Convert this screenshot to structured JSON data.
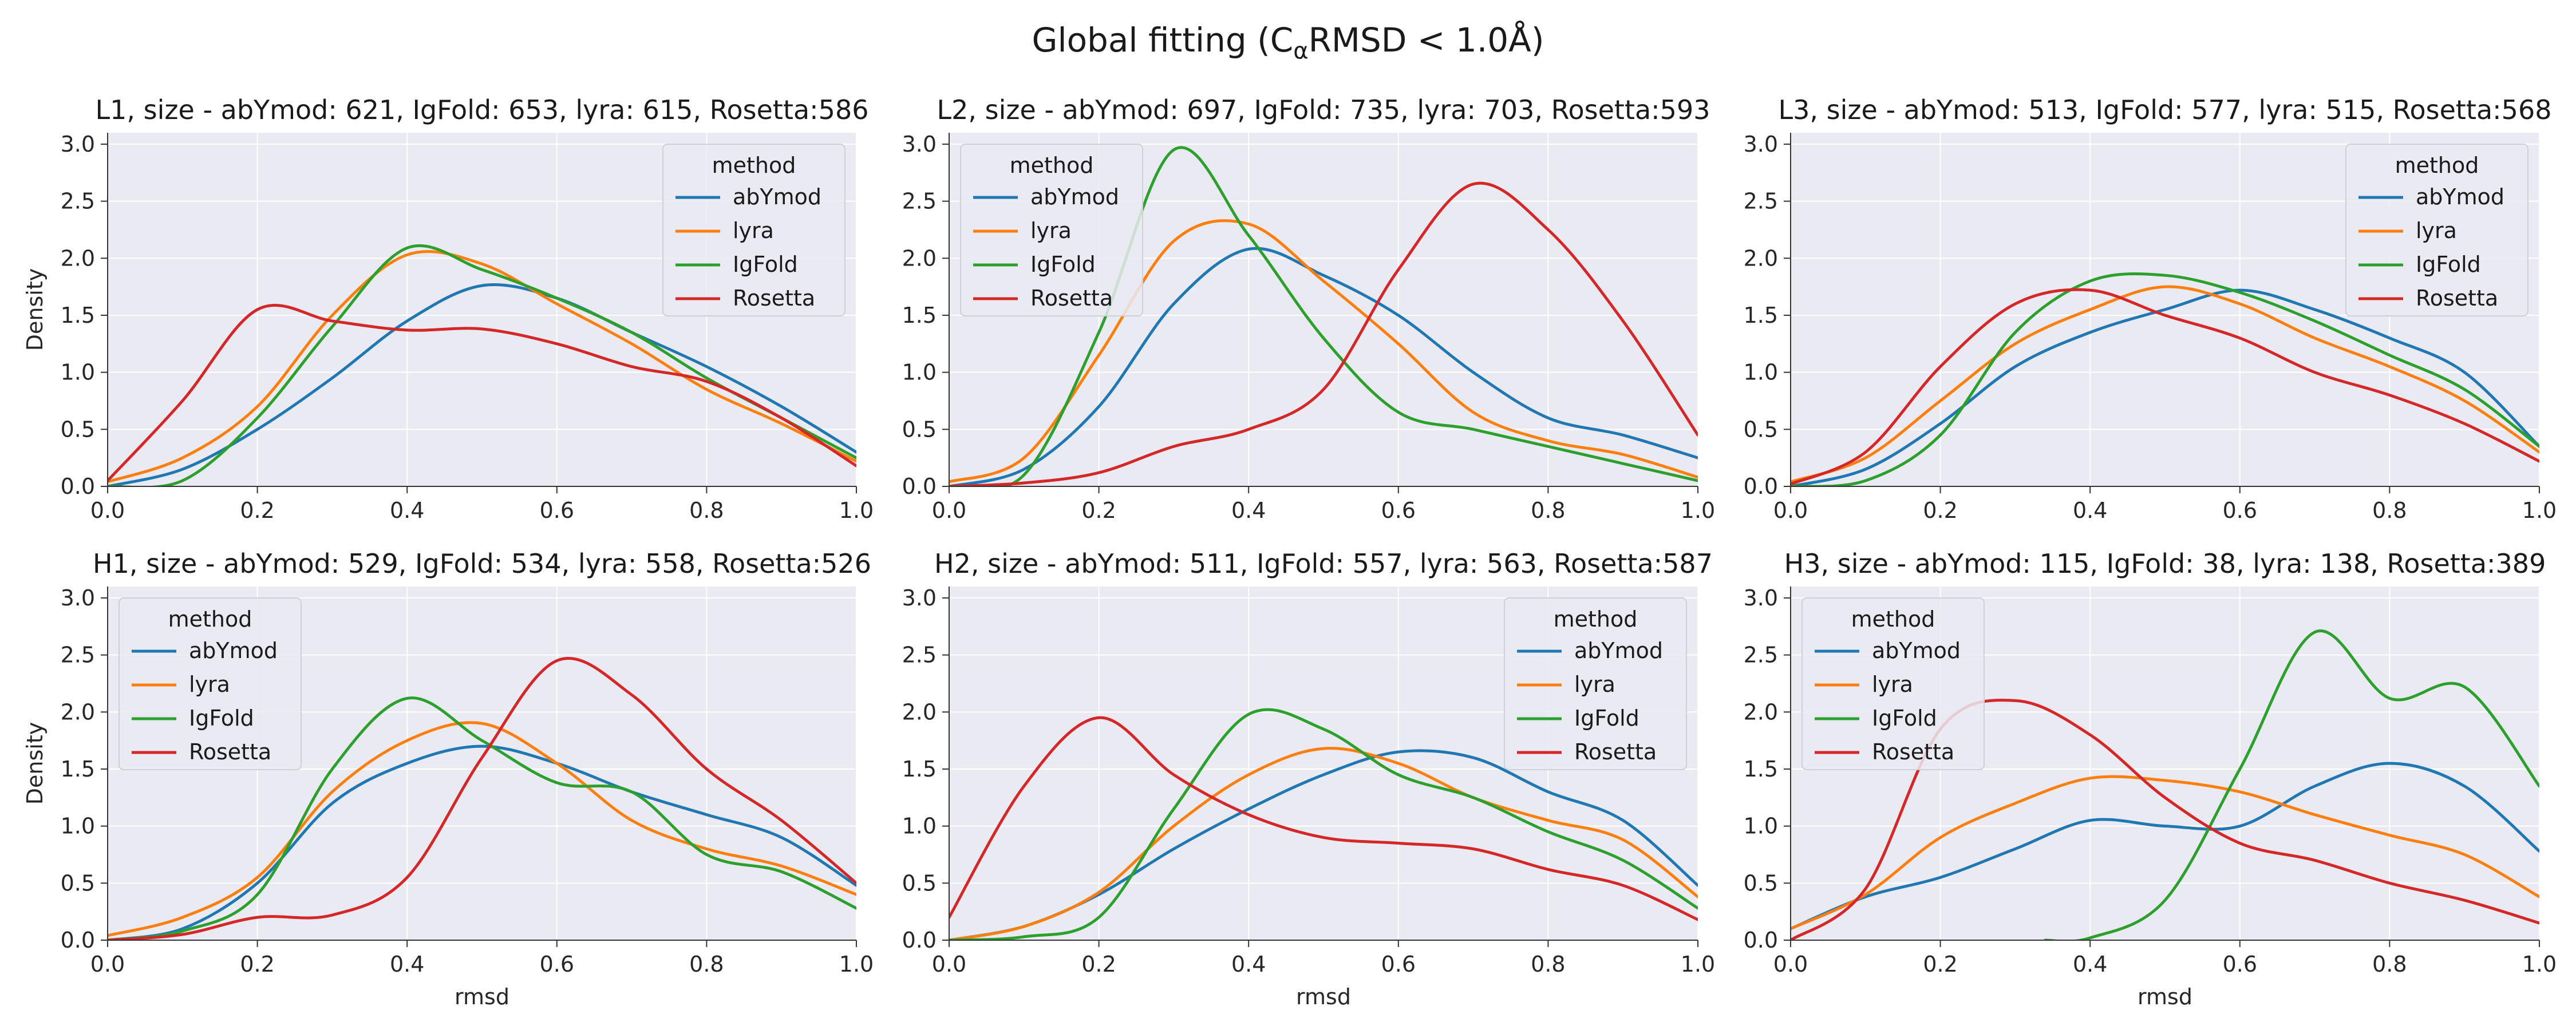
{
  "figure": {
    "suptitle_prefix": "Global fitting (C",
    "suptitle_sub": "α",
    "suptitle_suffix": "RMSD  < 1.0Å)"
  },
  "chart_data": [
    {
      "type": "line",
      "title": "L1, size - abYmod: 621, IgFold: 653, lyra: 615, Rosetta:586",
      "xlabel": "",
      "ylabel": "Density",
      "xlim": [
        0,
        1
      ],
      "ylim": [
        0,
        3.1
      ],
      "xticks": [
        "0.0",
        "0.2",
        "0.4",
        "0.6",
        "0.8",
        "1.0"
      ],
      "yticks": [
        "0.0",
        "0.5",
        "1.0",
        "1.5",
        "2.0",
        "2.5",
        "3.0"
      ],
      "grid": true,
      "legend": {
        "title": "method",
        "placement": "top-right"
      },
      "x": [
        0,
        0.1,
        0.2,
        0.3,
        0.4,
        0.5,
        0.6,
        0.7,
        0.8,
        0.9,
        1.0
      ],
      "series": [
        {
          "name": "abYmod",
          "color": "#1f77b4",
          "values": [
            0.0,
            0.15,
            0.5,
            0.95,
            1.45,
            1.76,
            1.65,
            1.35,
            1.05,
            0.7,
            0.3
          ]
        },
        {
          "name": "lyra",
          "color": "#ff7f0e",
          "values": [
            0.04,
            0.25,
            0.7,
            1.5,
            2.03,
            1.95,
            1.6,
            1.25,
            0.85,
            0.55,
            0.22
          ]
        },
        {
          "name": "IgFold",
          "color": "#2ca02c",
          "values": [
            0.0,
            0.05,
            0.6,
            1.4,
            2.09,
            1.9,
            1.65,
            1.35,
            0.95,
            0.6,
            0.25
          ]
        },
        {
          "name": "Rosetta",
          "color": "#d62728",
          "values": [
            0.05,
            0.75,
            1.55,
            1.45,
            1.37,
            1.38,
            1.25,
            1.05,
            0.92,
            0.6,
            0.18
          ]
        }
      ]
    },
    {
      "type": "line",
      "title": "L2, size - abYmod: 697, IgFold: 735, lyra: 703, Rosetta:593",
      "xlabel": "",
      "ylabel": "",
      "xlim": [
        0,
        1
      ],
      "ylim": [
        0,
        3.1
      ],
      "xticks": [
        "0.0",
        "0.2",
        "0.4",
        "0.6",
        "0.8",
        "1.0"
      ],
      "yticks": [
        "0.0",
        "0.5",
        "1.0",
        "1.5",
        "2.0",
        "2.5",
        "3.0"
      ],
      "grid": true,
      "legend": {
        "title": "method",
        "placement": "top-left"
      },
      "x": [
        0,
        0.1,
        0.2,
        0.3,
        0.4,
        0.5,
        0.6,
        0.7,
        0.8,
        0.9,
        1.0
      ],
      "series": [
        {
          "name": "abYmod",
          "color": "#1f77b4",
          "values": [
            0.0,
            0.15,
            0.7,
            1.6,
            2.08,
            1.85,
            1.5,
            1.0,
            0.6,
            0.45,
            0.25
          ]
        },
        {
          "name": "lyra",
          "color": "#ff7f0e",
          "values": [
            0.04,
            0.25,
            1.15,
            2.15,
            2.3,
            1.8,
            1.25,
            0.65,
            0.4,
            0.28,
            0.08
          ]
        },
        {
          "name": "IgFold",
          "color": "#2ca02c",
          "values": [
            0.0,
            0.1,
            1.35,
            2.95,
            2.2,
            1.3,
            0.65,
            0.5,
            0.35,
            0.2,
            0.05
          ]
        },
        {
          "name": "Rosetta",
          "color": "#d62728",
          "values": [
            0.0,
            0.03,
            0.12,
            0.35,
            0.5,
            0.85,
            1.9,
            2.65,
            2.25,
            1.45,
            0.45
          ]
        }
      ]
    },
    {
      "type": "line",
      "title": "L3, size - abYmod: 513, IgFold: 577, lyra: 515, Rosetta:568",
      "xlabel": "",
      "ylabel": "",
      "xlim": [
        0,
        1
      ],
      "ylim": [
        0,
        3.1
      ],
      "xticks": [
        "0.0",
        "0.2",
        "0.4",
        "0.6",
        "0.8",
        "1.0"
      ],
      "yticks": [
        "0.0",
        "0.5",
        "1.0",
        "1.5",
        "2.0",
        "2.5",
        "3.0"
      ],
      "grid": true,
      "legend": {
        "title": "method",
        "placement": "top-right"
      },
      "x": [
        0,
        0.1,
        0.2,
        0.3,
        0.4,
        0.5,
        0.6,
        0.7,
        0.8,
        0.9,
        1.0
      ],
      "series": [
        {
          "name": "abYmod",
          "color": "#1f77b4",
          "values": [
            0.0,
            0.15,
            0.55,
            1.05,
            1.35,
            1.55,
            1.72,
            1.55,
            1.3,
            1.0,
            0.35
          ]
        },
        {
          "name": "lyra",
          "color": "#ff7f0e",
          "values": [
            0.04,
            0.25,
            0.75,
            1.25,
            1.55,
            1.75,
            1.6,
            1.3,
            1.05,
            0.75,
            0.3
          ]
        },
        {
          "name": "IgFold",
          "color": "#2ca02c",
          "values": [
            0.0,
            0.05,
            0.45,
            1.35,
            1.8,
            1.85,
            1.7,
            1.45,
            1.15,
            0.85,
            0.35
          ]
        },
        {
          "name": "Rosetta",
          "color": "#d62728",
          "values": [
            0.02,
            0.3,
            1.05,
            1.6,
            1.72,
            1.5,
            1.3,
            1.0,
            0.8,
            0.55,
            0.22
          ]
        }
      ]
    },
    {
      "type": "line",
      "title": "H1, size - abYmod: 529, IgFold: 534, lyra: 558, Rosetta:526",
      "xlabel": "rmsd",
      "ylabel": "Density",
      "xlim": [
        0,
        1
      ],
      "ylim": [
        0,
        3.1
      ],
      "xticks": [
        "0.0",
        "0.2",
        "0.4",
        "0.6",
        "0.8",
        "1.0"
      ],
      "yticks": [
        "0.0",
        "0.5",
        "1.0",
        "1.5",
        "2.0",
        "2.5",
        "3.0"
      ],
      "grid": true,
      "legend": {
        "title": "method",
        "placement": "top-left"
      },
      "x": [
        0,
        0.1,
        0.2,
        0.3,
        0.4,
        0.5,
        0.6,
        0.7,
        0.8,
        0.9,
        1.0
      ],
      "series": [
        {
          "name": "abYmod",
          "color": "#1f77b4",
          "values": [
            0.0,
            0.1,
            0.5,
            1.2,
            1.55,
            1.7,
            1.55,
            1.3,
            1.1,
            0.9,
            0.48
          ]
        },
        {
          "name": "lyra",
          "color": "#ff7f0e",
          "values": [
            0.04,
            0.2,
            0.55,
            1.3,
            1.75,
            1.9,
            1.55,
            1.05,
            0.8,
            0.65,
            0.4
          ]
        },
        {
          "name": "IgFold",
          "color": "#2ca02c",
          "values": [
            0.0,
            0.08,
            0.4,
            1.5,
            2.12,
            1.75,
            1.38,
            1.3,
            0.75,
            0.6,
            0.28
          ]
        },
        {
          "name": "Rosetta",
          "color": "#d62728",
          "values": [
            0.0,
            0.05,
            0.2,
            0.22,
            0.55,
            1.6,
            2.45,
            2.15,
            1.5,
            1.05,
            0.5
          ]
        }
      ]
    },
    {
      "type": "line",
      "title": "H2, size - abYmod: 511, IgFold: 557, lyra: 563, Rosetta:587",
      "xlabel": "rmsd",
      "ylabel": "",
      "xlim": [
        0,
        1
      ],
      "ylim": [
        0,
        3.1
      ],
      "xticks": [
        "0.0",
        "0.2",
        "0.4",
        "0.6",
        "0.8",
        "1.0"
      ],
      "yticks": [
        "0.0",
        "0.5",
        "1.0",
        "1.5",
        "2.0",
        "2.5",
        "3.0"
      ],
      "grid": true,
      "legend": {
        "title": "method",
        "placement": "top-right"
      },
      "x": [
        0,
        0.1,
        0.2,
        0.3,
        0.4,
        0.5,
        0.6,
        0.7,
        0.8,
        0.9,
        1.0
      ],
      "series": [
        {
          "name": "abYmod",
          "color": "#1f77b4",
          "values": [
            0.0,
            0.12,
            0.4,
            0.8,
            1.15,
            1.45,
            1.65,
            1.6,
            1.3,
            1.05,
            0.48
          ]
        },
        {
          "name": "lyra",
          "color": "#ff7f0e",
          "values": [
            0.0,
            0.12,
            0.42,
            1.0,
            1.45,
            1.68,
            1.55,
            1.25,
            1.05,
            0.88,
            0.38
          ]
        },
        {
          "name": "IgFold",
          "color": "#2ca02c",
          "values": [
            0.0,
            0.03,
            0.2,
            1.15,
            1.98,
            1.85,
            1.45,
            1.25,
            0.95,
            0.7,
            0.28
          ]
        },
        {
          "name": "Rosetta",
          "color": "#d62728",
          "values": [
            0.2,
            1.35,
            1.95,
            1.45,
            1.1,
            0.9,
            0.85,
            0.8,
            0.62,
            0.48,
            0.18
          ]
        }
      ]
    },
    {
      "type": "line",
      "title": "H3, size - abYmod: 115, IgFold: 38, lyra: 138, Rosetta:389",
      "xlabel": "rmsd",
      "ylabel": "",
      "xlim": [
        0,
        1
      ],
      "ylim": [
        0,
        3.1
      ],
      "xticks": [
        "0.0",
        "0.2",
        "0.4",
        "0.6",
        "0.8",
        "1.0"
      ],
      "yticks": [
        "0.0",
        "0.5",
        "1.0",
        "1.5",
        "2.0",
        "2.5",
        "3.0"
      ],
      "grid": true,
      "legend": {
        "title": "method",
        "placement": "top-left"
      },
      "x": [
        0,
        0.1,
        0.2,
        0.3,
        0.4,
        0.5,
        0.6,
        0.7,
        0.8,
        0.9,
        1.0
      ],
      "series": [
        {
          "name": "abYmod",
          "color": "#1f77b4",
          "values": [
            0.1,
            0.38,
            0.55,
            0.8,
            1.05,
            1.0,
            1.0,
            1.35,
            1.55,
            1.35,
            0.78
          ]
        },
        {
          "name": "lyra",
          "color": "#ff7f0e",
          "values": [
            0.1,
            0.4,
            0.9,
            1.2,
            1.42,
            1.4,
            1.3,
            1.1,
            0.92,
            0.75,
            0.38
          ]
        },
        {
          "name": "IgFold",
          "color": "#2ca02c",
          "x": [
            0.34,
            0.4,
            0.5,
            0.6,
            0.7,
            0.8,
            0.9,
            1.0
          ],
          "values": [
            0.0,
            0.02,
            0.35,
            1.5,
            2.7,
            2.12,
            2.22,
            1.35
          ]
        },
        {
          "name": "Rosetta",
          "color": "#d62728",
          "values": [
            0.0,
            0.45,
            1.85,
            2.1,
            1.8,
            1.25,
            0.85,
            0.7,
            0.5,
            0.35,
            0.15
          ]
        }
      ]
    }
  ]
}
